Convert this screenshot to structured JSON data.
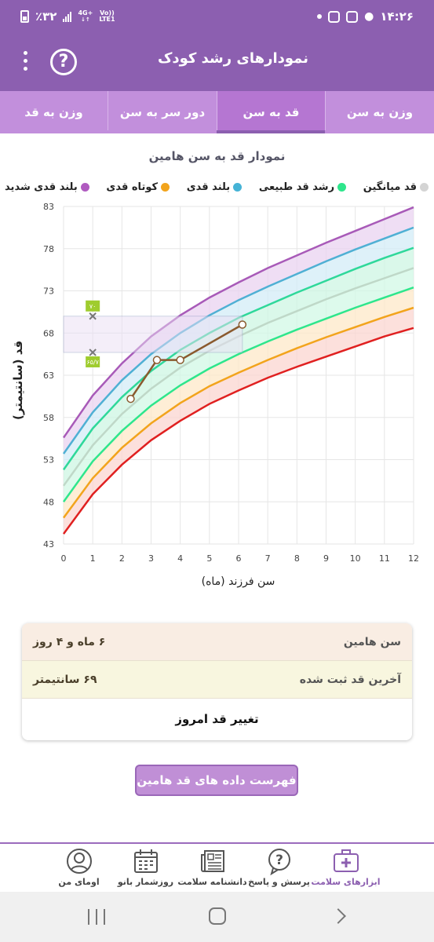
{
  "status_bar": {
    "battery": "٪۳۲",
    "network_top": "4G+",
    "network_bottom": "LTE1",
    "volte_top": "Vo))",
    "time": "۱۴:۲۶"
  },
  "header": {
    "title": "نمودارهای رشد کودک",
    "help_glyph": "?"
  },
  "tabs": [
    {
      "label": "وزن به سن",
      "active": false
    },
    {
      "label": "قد به سن",
      "active": true
    },
    {
      "label": "دور سر به سن",
      "active": false
    },
    {
      "label": "وزن به قد",
      "active": false
    }
  ],
  "chart": {
    "title": "نمودار قد به سن هامین",
    "legend": [
      {
        "label": "بلند قدی شدید",
        "color": "#b05bc0"
      },
      {
        "label": "کوتاه قدی",
        "color": "#f2a41c"
      },
      {
        "label": "بلند قدی",
        "color": "#45b3d6"
      },
      {
        "label": "رشد قد طبیعی",
        "color": "#2ee68c"
      },
      {
        "label": "قد میانگین",
        "color": "#d4d4d4"
      }
    ],
    "y_axis_label": "قد (سانتیمتر)",
    "x_axis_label": "سن فرزند (ماه)",
    "markers": {
      "upper_label": "۷۰",
      "lower_label": "۶۵/۷"
    }
  },
  "chart_data": {
    "type": "line",
    "xlim": [
      0,
      12
    ],
    "ylim": [
      43,
      83
    ],
    "x_ticks": [
      "0",
      "1",
      "2",
      "3",
      "4",
      "5",
      "6",
      "7",
      "8",
      "9",
      "10",
      "11",
      "12"
    ],
    "y_ticks": [
      "43",
      "48",
      "53",
      "58",
      "63",
      "68",
      "73",
      "78",
      "83"
    ],
    "grid": true,
    "x": [
      0,
      1,
      2,
      3,
      4,
      5,
      6,
      7,
      8,
      9,
      10,
      11,
      12
    ],
    "series": [
      {
        "name": "بلند قدی شدید",
        "color": "#a85ab8",
        "values": [
          55.6,
          60.6,
          64.4,
          67.6,
          70.1,
          72.2,
          74.0,
          75.7,
          77.2,
          78.7,
          80.1,
          81.5,
          82.9
        ]
      },
      {
        "name": "بلند قدی",
        "color": "#4fb0d4",
        "values": [
          53.7,
          58.6,
          62.4,
          65.5,
          68.0,
          70.1,
          71.9,
          73.5,
          75.0,
          76.5,
          77.9,
          79.2,
          80.5
        ]
      },
      {
        "values": [
          51.8,
          56.7,
          60.4,
          63.5,
          66.0,
          68.0,
          69.8,
          71.3,
          72.8,
          74.2,
          75.6,
          76.9,
          78.1
        ],
        "color": "#2fd89a"
      },
      {
        "name": "قد میانگین",
        "color": "#bfd8c8",
        "values": [
          49.9,
          54.7,
          58.4,
          61.4,
          63.9,
          65.9,
          67.6,
          69.2,
          70.6,
          72.0,
          73.3,
          74.5,
          75.7
        ]
      },
      {
        "values": [
          48.0,
          52.8,
          56.4,
          59.4,
          61.8,
          63.8,
          65.5,
          67.0,
          68.4,
          69.7,
          71.0,
          72.2,
          73.4
        ],
        "color": "#2ee68c"
      },
      {
        "name": "کوتاه قدی",
        "color": "#f2a41c",
        "values": [
          46.1,
          50.8,
          54.4,
          57.3,
          59.7,
          61.7,
          63.3,
          64.8,
          66.2,
          67.5,
          68.7,
          69.9,
          71.0
        ]
      },
      {
        "values": [
          44.2,
          48.9,
          52.4,
          55.3,
          57.6,
          59.6,
          61.2,
          62.7,
          64.0,
          65.2,
          66.4,
          67.6,
          68.6
        ],
        "color": "#e02020"
      }
    ],
    "child_measurements": {
      "x": [
        2.3,
        3.2,
        4.0,
        6.13
      ],
      "y": [
        60.2,
        64.8,
        64.8,
        69.0
      ],
      "color": "#8a5a2e"
    },
    "reference_markers": {
      "x": 1,
      "y": [
        70,
        65.7
      ]
    }
  },
  "info": {
    "age_label": "سن هامین",
    "age_value": "۶ ماه و ۴ روز",
    "height_label": "آخرین قد ثبت شده",
    "height_value": "۶۹ سانتیمتر",
    "change_button": "تغییر قد امروز"
  },
  "list_button": "فهرست داده های قد هامین",
  "bottom_nav": [
    {
      "label": "ابزارهای سلامت",
      "icon": "medical-kit-icon",
      "active": true
    },
    {
      "label": "پرسش و پاسخ",
      "icon": "question-bubble-icon",
      "active": false
    },
    {
      "label": "دانشنامه سلامت",
      "icon": "newspaper-icon",
      "active": false
    },
    {
      "label": "روزشمار بانو",
      "icon": "calendar-icon",
      "active": false
    },
    {
      "label": "اومای من",
      "icon": "profile-icon",
      "active": false
    }
  ]
}
